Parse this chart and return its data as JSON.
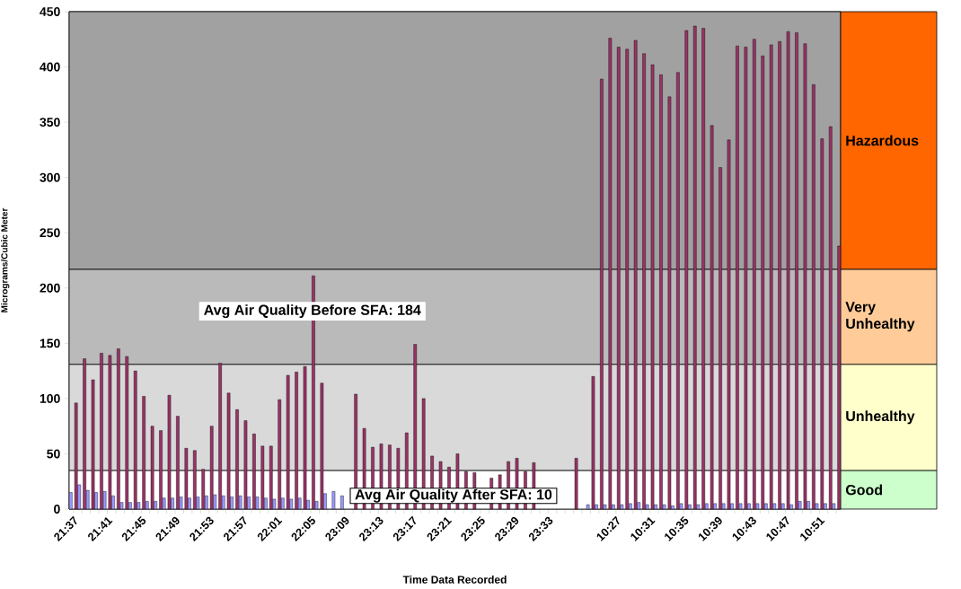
{
  "chart_data": {
    "type": "bar",
    "xlabel": "Time Data Recorded",
    "ylabel": "Micrograms/Cubic Meter",
    "categories": [
      "21:37",
      null,
      null,
      null,
      "21:41",
      null,
      null,
      null,
      "21:45",
      null,
      null,
      null,
      "21:49",
      null,
      null,
      null,
      "21:53",
      null,
      null,
      null,
      "21:57",
      null,
      null,
      null,
      "22:01",
      null,
      null,
      null,
      "22:05",
      null,
      null,
      null,
      "23:09",
      null,
      null,
      null,
      "23:13",
      null,
      null,
      null,
      "23:17",
      null,
      null,
      null,
      "23:21",
      null,
      null,
      null,
      "23:25",
      null,
      null,
      null,
      "23:29",
      null,
      null,
      null,
      "23:33",
      null,
      null,
      null,
      null,
      null,
      null,
      null,
      "10:27",
      null,
      null,
      null,
      "10:31",
      null,
      null,
      null,
      "10:35",
      null,
      null,
      null,
      "10:39",
      null,
      null,
      null,
      "10:43",
      null,
      null,
      null,
      "10:47",
      null,
      null,
      null,
      "10:51",
      null,
      null
    ],
    "series": [
      {
        "color": "#9999ff",
        "values": [
          15,
          22,
          17,
          15,
          16,
          12,
          6,
          6,
          6,
          7,
          7,
          10,
          10,
          11,
          10,
          11,
          12,
          13,
          12,
          11,
          12,
          11,
          11,
          10,
          9,
          10,
          9,
          10,
          8,
          7,
          14,
          16,
          12,
          null,
          null,
          null,
          null,
          null,
          null,
          null,
          null,
          null,
          null,
          null,
          null,
          null,
          null,
          null,
          null,
          null,
          null,
          null,
          null,
          null,
          null,
          null,
          null,
          null,
          null,
          null,
          null,
          4,
          4,
          4,
          4,
          4,
          5,
          6,
          4,
          4,
          4,
          3,
          5,
          4,
          4,
          5,
          5,
          5,
          5,
          5,
          5,
          5,
          5,
          5,
          5,
          4,
          7,
          7,
          5,
          5,
          5
        ]
      },
      {
        "color": "#993366",
        "values": [
          96,
          136,
          117,
          141,
          139,
          145,
          138,
          125,
          102,
          75,
          71,
          103,
          84,
          55,
          53,
          36,
          75,
          132,
          105,
          90,
          80,
          68,
          57,
          57,
          99,
          121,
          124,
          129,
          211,
          114,
          null,
          null,
          null,
          104,
          73,
          56,
          59,
          58,
          55,
          69,
          149,
          100,
          48,
          43,
          38,
          50,
          34,
          33,
          null,
          28,
          31,
          43,
          46,
          34,
          42,
          null,
          null,
          null,
          null,
          46,
          null,
          120,
          389,
          426,
          418,
          416,
          424,
          412,
          402,
          393,
          373,
          395,
          433,
          437,
          435,
          347,
          309,
          334,
          419,
          418,
          425,
          410,
          420,
          423,
          432,
          431,
          421,
          384,
          335,
          346,
          238
        ]
      }
    ],
    "ylim": [
      0,
      450
    ],
    "yticks": [
      0,
      50,
      100,
      150,
      200,
      250,
      300,
      350,
      400,
      450
    ],
    "bands": [
      {
        "axis": "y",
        "from": 0,
        "to": 35,
        "label": "Good",
        "color": "#ffffff"
      },
      {
        "axis": "y",
        "from": 35,
        "to": 131,
        "label": "Unhealthy",
        "color": "#d9d9d9"
      },
      {
        "axis": "y",
        "from": 131,
        "to": 217,
        "label": "Very Unhealthy",
        "color": "#bababa"
      },
      {
        "axis": "y",
        "from": 217,
        "to": 450,
        "label": "Hazardous",
        "color": "#a1a1a1"
      }
    ],
    "annotations": [
      "Avg Air Quality Before SFA: 184",
      "Avg Air Quality After SFA: 10"
    ]
  }
}
